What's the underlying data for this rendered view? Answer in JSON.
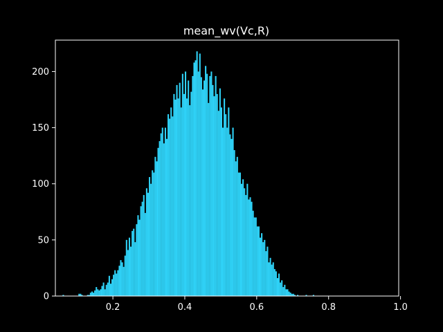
{
  "chart_data": {
    "type": "histogram",
    "title": "mean_wv(Vc,R)",
    "xlabel": "",
    "ylabel": "",
    "xlim": [
      0.04,
      0.995
    ],
    "ylim": [
      0,
      228
    ],
    "x_ticks": [
      0.2,
      0.4,
      0.6,
      0.8,
      1.0
    ],
    "x_tick_labels": [
      "0.2",
      "0.4",
      "0.6",
      "0.8",
      "1.0"
    ],
    "y_ticks": [
      0,
      50,
      100,
      150,
      200
    ],
    "y_tick_labels": [
      "0",
      "50",
      "100",
      "150",
      "200"
    ],
    "bin_start": 0.06,
    "bin_width": 0.004,
    "counts": [
      1,
      0,
      0,
      0,
      0,
      0,
      0,
      0,
      0,
      0,
      0,
      2,
      2,
      1,
      0,
      0,
      0,
      1,
      1,
      3,
      4,
      3,
      5,
      8,
      6,
      5,
      6,
      9,
      12,
      6,
      10,
      12,
      18,
      11,
      15,
      19,
      23,
      20,
      23,
      27,
      32,
      30,
      26,
      36,
      50,
      41,
      52,
      44,
      58,
      60,
      48,
      64,
      72,
      68,
      80,
      84,
      90,
      74,
      96,
      92,
      106,
      100,
      112,
      110,
      124,
      120,
      132,
      138,
      145,
      150,
      136,
      150,
      140,
      162,
      158,
      168,
      160,
      180,
      175,
      188,
      176,
      190,
      168,
      198,
      180,
      200,
      176,
      192,
      170,
      182,
      196,
      208,
      210,
      218,
      200,
      216,
      195,
      184,
      192,
      205,
      198,
      172,
      196,
      200,
      188,
      178,
      196,
      180,
      165,
      185,
      168,
      150,
      176,
      162,
      150,
      168,
      144,
      140,
      150,
      130,
      120,
      124,
      110,
      110,
      100,
      104,
      96,
      90,
      100,
      86,
      88,
      84,
      76,
      70,
      70,
      62,
      62,
      52,
      56,
      48,
      50,
      40,
      44,
      30,
      34,
      28,
      30,
      24,
      22,
      16,
      20,
      12,
      14,
      8,
      10,
      6,
      6,
      4,
      3,
      2,
      2,
      1,
      0,
      1,
      0,
      0,
      0,
      0,
      0,
      1,
      0,
      0,
      0,
      0,
      1
    ],
    "bar_color": "#2fd2f7"
  }
}
